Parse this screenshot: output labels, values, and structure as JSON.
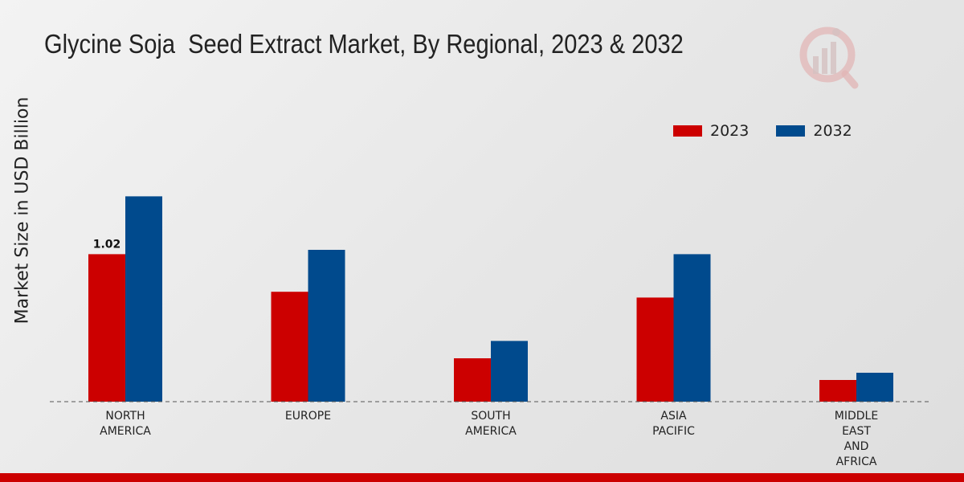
{
  "title": "Glycine Soja  Seed Extract Market, By Regional, 2023 & 2032",
  "colors": {
    "series_2023": "#cc0000",
    "series_2032": "#004a8d",
    "footer": "#cc0000"
  },
  "chart_data": {
    "type": "bar",
    "title": "Glycine Soja  Seed Extract Market, By Regional, 2023 & 2032",
    "xlabel": "",
    "ylabel": "Market Size in USD Billion",
    "categories": [
      [
        "NORTH",
        "AMERICA"
      ],
      [
        "EUROPE"
      ],
      [
        "SOUTH",
        "AMERICA"
      ],
      [
        "ASIA",
        "PACIFIC"
      ],
      [
        "MIDDLE",
        "EAST",
        "AND",
        "AFRICA"
      ]
    ],
    "series": [
      {
        "name": "2023",
        "values": [
          1.02,
          0.76,
          0.3,
          0.72,
          0.15
        ]
      },
      {
        "name": "2032",
        "values": [
          1.42,
          1.05,
          0.42,
          1.02,
          0.2
        ]
      }
    ],
    "data_labels": [
      {
        "series": 0,
        "index": 0,
        "text": "1.02"
      }
    ],
    "ylim": [
      0,
      2.5
    ],
    "legend_position": "top-right",
    "grid": false
  }
}
